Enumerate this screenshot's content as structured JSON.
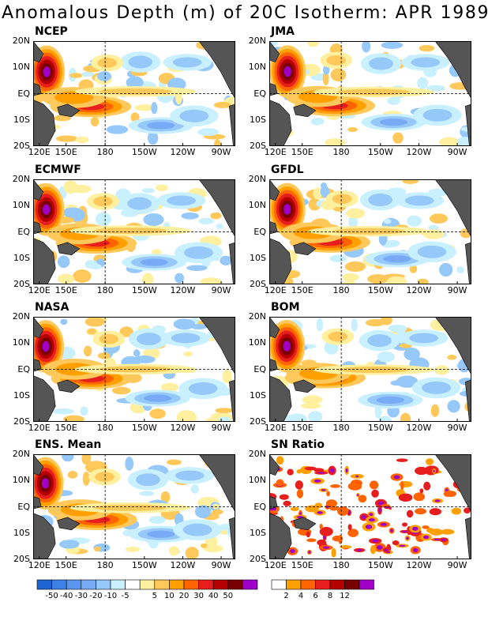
{
  "title": "Anomalous Depth (m) of 20C Isotherm: APR 1989",
  "lat_labels": [
    "20N",
    "10N",
    "EQ",
    "10S",
    "20S"
  ],
  "lon_labels": [
    "120E",
    "150E",
    "180",
    "150W",
    "120W",
    "90W"
  ],
  "panels": [
    {
      "label": "NCEP"
    },
    {
      "label": "JMA"
    },
    {
      "label": "ECMWF"
    },
    {
      "label": "GFDL"
    },
    {
      "label": "NASA"
    },
    {
      "label": "BOM"
    },
    {
      "label": "ENS. Mean"
    },
    {
      "label": "SN Ratio"
    }
  ],
  "legend_anomaly": {
    "colors": [
      "#1e64d2",
      "#3c82e6",
      "#5a96f0",
      "#78aaf5",
      "#96c8fa",
      "#c8f0ff",
      "#ffffff",
      "#fff0a0",
      "#ffc85a",
      "#ffa000",
      "#ff6400",
      "#e61e1e",
      "#b40000",
      "#780000",
      "#a000c8"
    ],
    "labels": [
      "-50",
      "-40",
      "-30",
      "-20",
      "-10",
      "-5",
      "5",
      "10",
      "20",
      "30",
      "40",
      "50"
    ]
  },
  "legend_sn": {
    "colors": [
      "#ffffff",
      "#ffa000",
      "#ff6400",
      "#e61e1e",
      "#b40000",
      "#780000",
      "#a000c8"
    ],
    "labels": [
      "2",
      "4",
      "6",
      "8",
      "12"
    ]
  }
}
